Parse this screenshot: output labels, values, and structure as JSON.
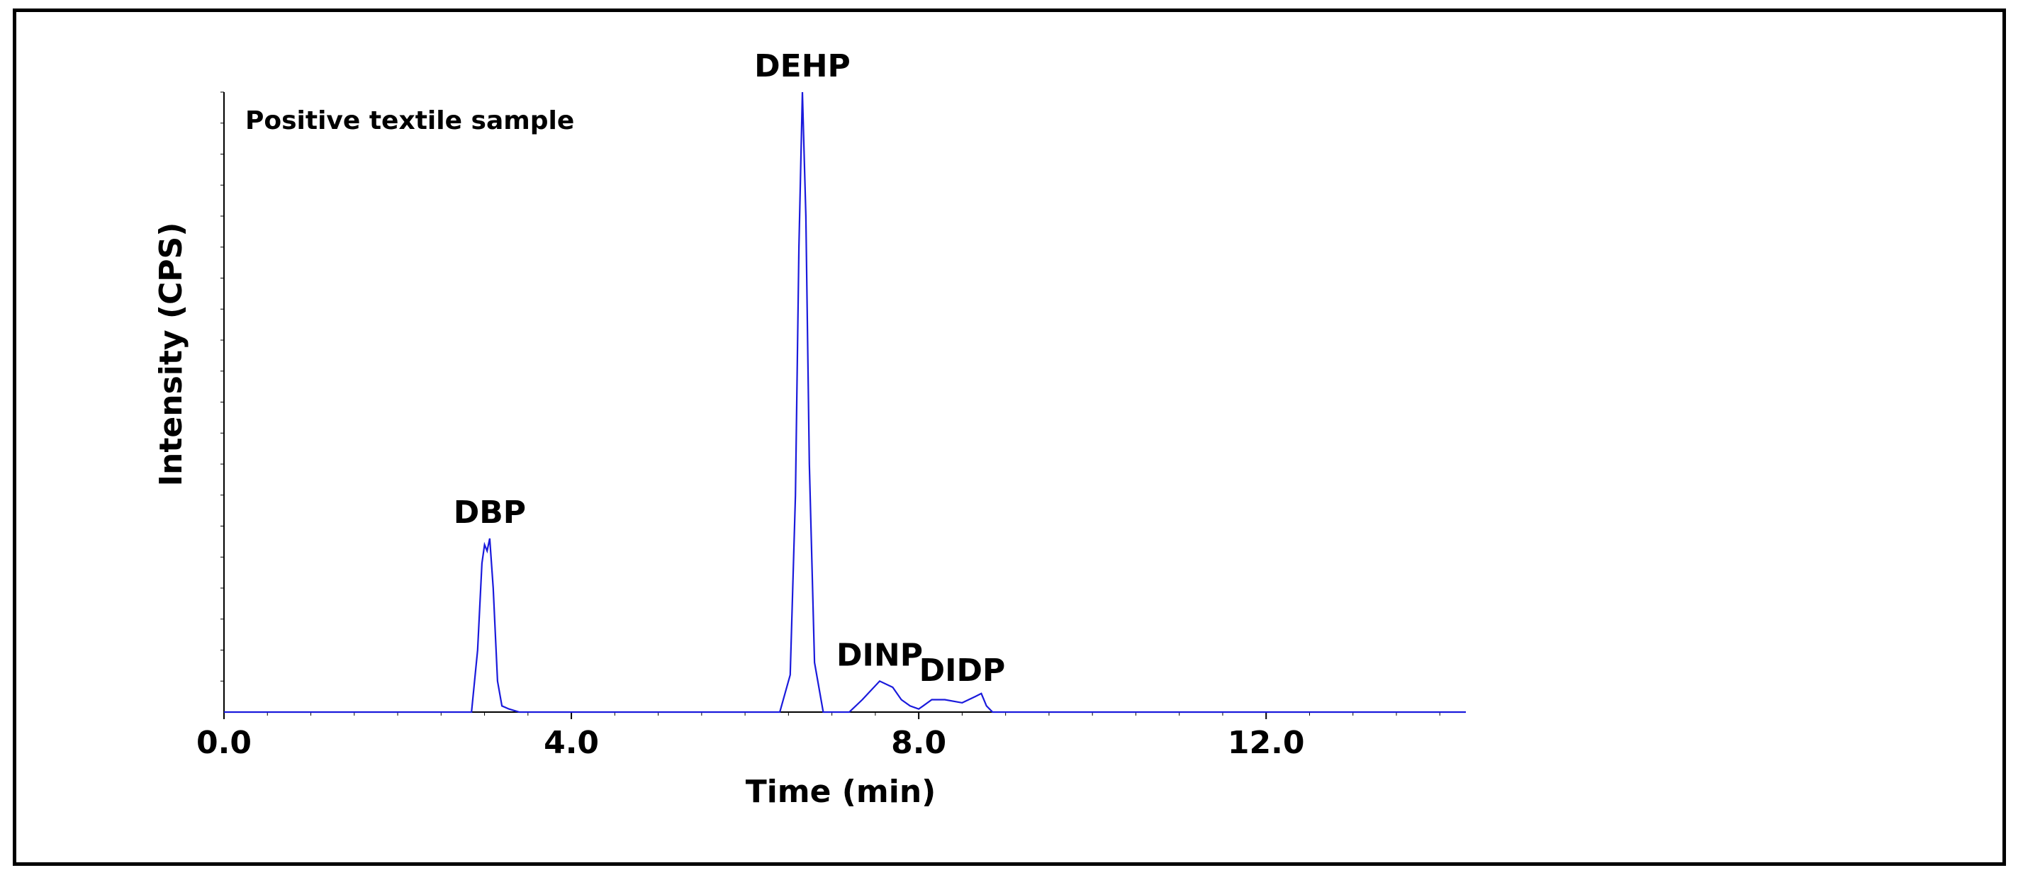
{
  "chart_data": {
    "type": "line",
    "title": "",
    "subtitle": "Positive textile sample",
    "xlabel": "Time (min)",
    "ylabel": "Intensity (CPS)",
    "xlim": [
      0,
      14.3
    ],
    "ylim": [
      0,
      100
    ],
    "x_ticks": [
      {
        "value": 0,
        "label": "0.0"
      },
      {
        "value": 4,
        "label": "4.0"
      },
      {
        "value": 8,
        "label": "8.0"
      },
      {
        "value": 12,
        "label": "12.0"
      }
    ],
    "grid": false,
    "legend": "none",
    "line_color": "#1a1adc",
    "series": [
      {
        "name": "",
        "x": [
          0,
          2.85,
          2.92,
          2.97,
          3.0,
          3.03,
          3.06,
          3.1,
          3.15,
          3.2,
          3.28,
          3.4,
          4.5,
          6.4,
          6.52,
          6.58,
          6.62,
          6.66,
          6.7,
          6.74,
          6.8,
          6.9,
          7.2,
          7.35,
          7.55,
          7.7,
          7.8,
          7.9,
          8.0,
          8.05,
          8.15,
          8.3,
          8.5,
          8.65,
          8.72,
          8.78,
          8.85,
          9.0,
          14.3
        ],
        "y": [
          0,
          0,
          10,
          24,
          27,
          26,
          28,
          20,
          5,
          1,
          0.5,
          0,
          0,
          0,
          6,
          35,
          75,
          100,
          80,
          40,
          8,
          0,
          0,
          2,
          5,
          4,
          2,
          1,
          0.5,
          1,
          2,
          2,
          1.5,
          2.5,
          3,
          1,
          0,
          0,
          0
        ]
      }
    ],
    "annotations": [
      {
        "text": "DBP",
        "x": 3.06,
        "y": 28
      },
      {
        "text": "DEHP",
        "x": 6.66,
        "y": 100
      },
      {
        "text": "DINP",
        "x": 7.55,
        "y": 5
      },
      {
        "text": "DIDP",
        "x": 8.5,
        "y": 2.5
      }
    ]
  }
}
